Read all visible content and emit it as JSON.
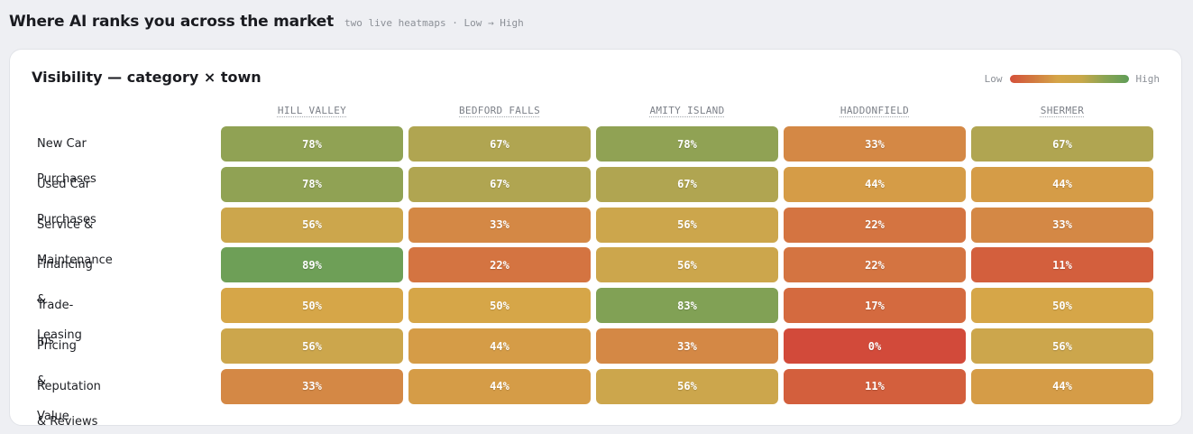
{
  "header": {
    "title": "Where AI ranks you across the market",
    "subtitle": "two live heatmaps · Low → High"
  },
  "card": {
    "title": "Visibility — category × town",
    "legend": {
      "low": "Low",
      "high": "High"
    }
  },
  "chart_data": {
    "type": "heatmap",
    "title": "Visibility — category × town",
    "x": [
      "HILL VALLEY",
      "BEDFORD FALLS",
      "AMITY ISLAND",
      "HADDONFIELD",
      "SHERMER"
    ],
    "y": [
      "New Car Purchases",
      "Used Car Purchases",
      "Service & Maintenance",
      "Financing & Leasing",
      "Trade-Ins",
      "Pricing & Value",
      "Reputation & Reviews"
    ],
    "values": [
      [
        78,
        67,
        78,
        33,
        67
      ],
      [
        78,
        67,
        67,
        44,
        44
      ],
      [
        56,
        33,
        56,
        22,
        33
      ],
      [
        89,
        22,
        56,
        22,
        11
      ],
      [
        50,
        50,
        83,
        17,
        50
      ],
      [
        56,
        44,
        33,
        0,
        56
      ],
      [
        33,
        44,
        56,
        11,
        44
      ]
    ],
    "cell_labels": [
      [
        "78%",
        "67%",
        "78%",
        "33%",
        "67%"
      ],
      [
        "78%",
        "67%",
        "67%",
        "44%",
        "44%"
      ],
      [
        "56%",
        "33%",
        "56%",
        "22%",
        "33%"
      ],
      [
        "89%",
        "22%",
        "56%",
        "22%",
        "11%"
      ],
      [
        "50%",
        "50%",
        "83%",
        "17%",
        "50%"
      ],
      [
        "56%",
        "44%",
        "33%",
        "0%",
        "56%"
      ],
      [
        "33%",
        "44%",
        "56%",
        "11%",
        "44%"
      ]
    ],
    "color_scale": {
      "low": "#d4503a",
      "high": "#5f9d58"
    },
    "legend_position": "top-right"
  }
}
